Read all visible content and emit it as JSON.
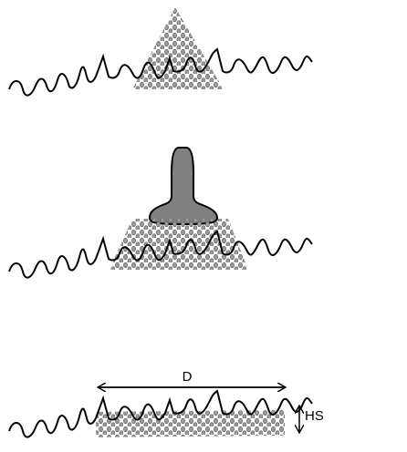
{
  "dimensions": {
    "width_label": "D",
    "height_label": "HS"
  }
}
